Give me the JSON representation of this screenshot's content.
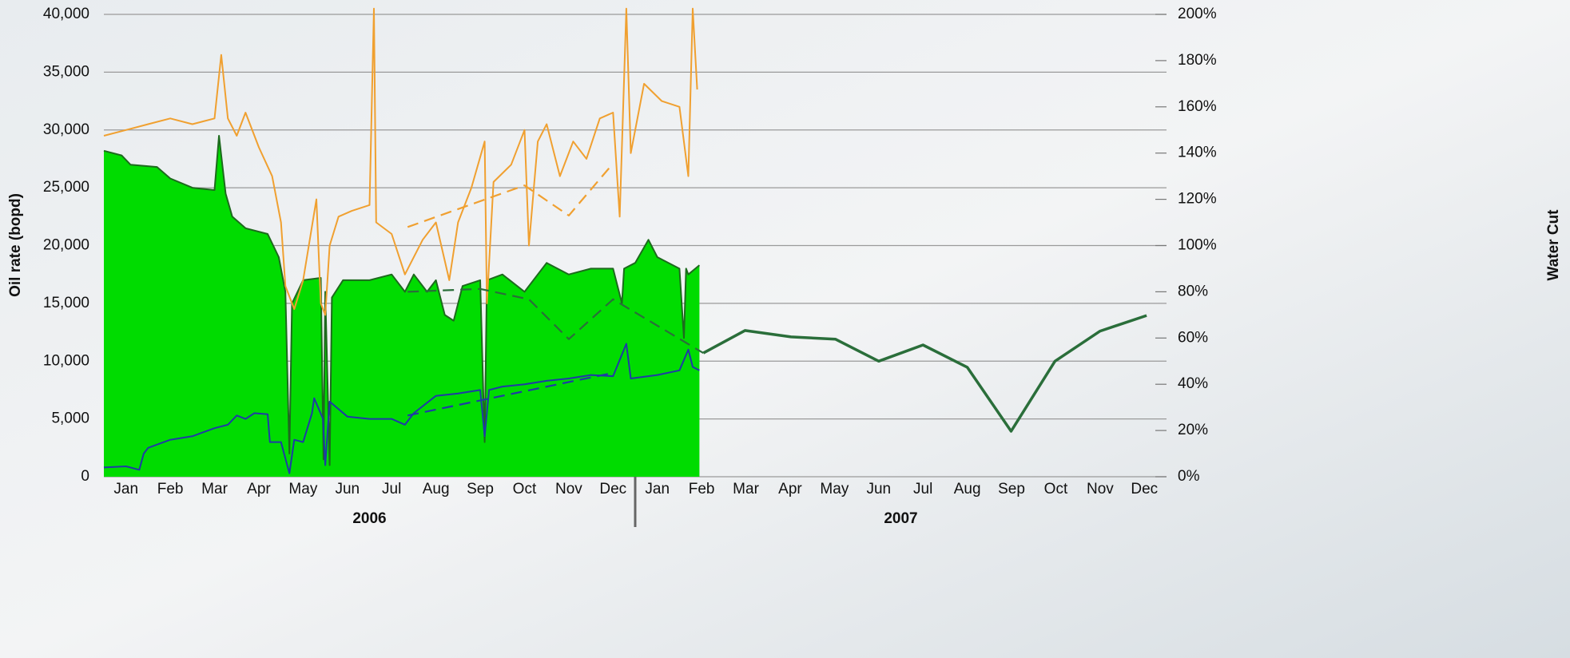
{
  "chart_data": {
    "type": "line",
    "y_axis_label": "Oil rate (bopd)",
    "y2_axis_label": "Water Cut",
    "xlim": [
      0,
      24
    ],
    "xticks": [
      {
        "value": 0.5,
        "label": "Jan"
      },
      {
        "value": 1.5,
        "label": "Feb"
      },
      {
        "value": 2.5,
        "label": "Mar"
      },
      {
        "value": 3.5,
        "label": "Apr"
      },
      {
        "value": 4.5,
        "label": "May"
      },
      {
        "value": 5.5,
        "label": "Jun"
      },
      {
        "value": 6.5,
        "label": "Jul"
      },
      {
        "value": 7.5,
        "label": "Aug"
      },
      {
        "value": 8.5,
        "label": "Sep"
      },
      {
        "value": 9.5,
        "label": "Oct"
      },
      {
        "value": 10.5,
        "label": "Nov"
      },
      {
        "value": 11.5,
        "label": "Dec"
      },
      {
        "value": 12.5,
        "label": "Jan"
      },
      {
        "value": 13.5,
        "label": "Feb"
      },
      {
        "value": 14.5,
        "label": "Mar"
      },
      {
        "value": 15.5,
        "label": "Apr"
      },
      {
        "value": 16.5,
        "label": "May"
      },
      {
        "value": 17.5,
        "label": "Jun"
      },
      {
        "value": 18.5,
        "label": "Jul"
      },
      {
        "value": 19.5,
        "label": "Aug"
      },
      {
        "value": 20.5,
        "label": "Sep"
      },
      {
        "value": 21.5,
        "label": "Oct"
      },
      {
        "value": 22.5,
        "label": "Nov"
      },
      {
        "value": 23.5,
        "label": "Dec"
      }
    ],
    "x_groups": [
      {
        "label": "2006",
        "range": [
          0,
          12
        ]
      },
      {
        "label": "2007",
        "range": [
          12,
          24
        ]
      }
    ],
    "ylim": [
      0,
      40000
    ],
    "yticks": [
      0,
      {
        "value": 5000,
        "label": "5,000"
      },
      {
        "value": 10000,
        "label": "10,000"
      },
      {
        "value": 15000,
        "label": "15,000"
      },
      {
        "value": 20000,
        "label": "20,000"
      },
      {
        "value": 25000,
        "label": "25,000"
      },
      {
        "value": 30000,
        "label": "30,000"
      },
      {
        "value": 35000,
        "label": "35,000"
      },
      {
        "value": 40000,
        "label": "40,000"
      }
    ],
    "y2lim": [
      0,
      200
    ],
    "y2ticks": [
      {
        "value": 0,
        "label": "0%"
      },
      {
        "value": 20,
        "label": "20%"
      },
      {
        "value": 40,
        "label": "40%"
      },
      {
        "value": 60,
        "label": "60%"
      },
      {
        "value": 80,
        "label": "80%"
      },
      {
        "value": 100,
        "label": "100%"
      },
      {
        "value": 120,
        "label": "120%"
      },
      {
        "value": 140,
        "label": "140%"
      },
      {
        "value": 160,
        "label": "160%"
      },
      {
        "value": 180,
        "label": "180%"
      },
      {
        "value": 200,
        "label": "200%"
      }
    ],
    "grid": true,
    "series": [
      {
        "color": "#1d6a1d",
        "fill": "#00dc00",
        "style": "solid",
        "x": [
          0,
          0.4,
          0.6,
          1.2,
          1.5,
          2.0,
          2.5,
          2.6,
          2.75,
          2.9,
          3.2,
          3.7,
          3.95,
          4.1,
          4.19,
          4.25,
          4.5,
          4.9,
          4.96,
          5.0,
          5.1,
          5.15,
          5.4,
          6.0,
          6.5,
          6.8,
          7.0,
          7.3,
          7.5,
          7.7,
          7.9,
          8.1,
          8.5,
          8.6,
          8.65,
          9.0,
          9.5,
          10.0,
          10.5,
          11.0,
          11.5,
          11.7,
          11.75,
          12.0,
          12.3,
          12.5,
          13.0,
          13.1,
          13.15,
          13.2,
          13.45
        ],
        "values": [
          28200,
          27800,
          27000,
          26800,
          25800,
          25000,
          24800,
          29500,
          24500,
          22500,
          21500,
          21000,
          19000,
          16000,
          2000,
          15000,
          17000,
          17200,
          1500,
          16000,
          1000,
          15500,
          17000,
          17000,
          17500,
          16000,
          17500,
          16000,
          17000,
          14000,
          13500,
          16500,
          17000,
          3000,
          17000,
          17500,
          16000,
          18500,
          17500,
          18000,
          18000,
          15000,
          18000,
          18500,
          20500,
          19000,
          18000,
          12000,
          18000,
          17500,
          18300
        ]
      },
      {
        "color": "#f0a030",
        "style": "solid",
        "x": [
          0,
          0.5,
          1.0,
          1.5,
          2.0,
          2.5,
          2.65,
          2.8,
          3.0,
          3.2,
          3.5,
          3.8,
          4.0,
          4.1,
          4.3,
          4.5,
          4.8,
          4.9,
          5.0,
          5.1,
          5.3,
          5.6,
          6.0,
          6.1,
          6.15,
          6.5,
          6.8,
          7.2,
          7.5,
          7.8,
          8.0,
          8.3,
          8.6,
          8.65,
          8.8,
          9.2,
          9.5,
          9.6,
          9.8,
          10.0,
          10.3,
          10.6,
          10.9,
          11.2,
          11.5,
          11.65,
          11.8,
          11.9,
          12.2,
          12.6,
          13.0,
          13.2,
          13.3,
          13.4
        ],
        "values": [
          29500,
          30000,
          30500,
          31000,
          30500,
          31000,
          36500,
          31000,
          29500,
          31500,
          28500,
          26000,
          22000,
          16500,
          14500,
          17000,
          24000,
          15000,
          14000,
          20000,
          22500,
          23000,
          23500,
          40500,
          22000,
          21000,
          17500,
          20500,
          22000,
          17000,
          22000,
          25000,
          29000,
          15000,
          25500,
          27000,
          30000,
          20000,
          29000,
          30500,
          26000,
          29000,
          27500,
          31000,
          31500,
          22500,
          40500,
          28000,
          34000,
          32500,
          32000,
          26000,
          40500,
          33500
        ]
      },
      {
        "color": "#1f3aa6",
        "style": "solid",
        "x": [
          0,
          0.5,
          0.8,
          0.9,
          1.0,
          1.5,
          2.0,
          2.5,
          2.8,
          3.0,
          3.2,
          3.4,
          3.7,
          3.75,
          4.0,
          4.19,
          4.3,
          4.5,
          4.7,
          4.75,
          4.95,
          5.0,
          5.1,
          5.5,
          6.0,
          6.5,
          6.8,
          7.0,
          7.5,
          8.0,
          8.5,
          8.6,
          8.7,
          9.0,
          9.5,
          10.0,
          10.5,
          11.0,
          11.5,
          11.8,
          11.9,
          12.5,
          13.0,
          13.2,
          13.3,
          13.45
        ],
        "values": [
          800,
          900,
          600,
          2000,
          2500,
          3200,
          3500,
          4200,
          4500,
          5300,
          5000,
          5500,
          5400,
          3000,
          3000,
          300,
          3200,
          3000,
          5500,
          6800,
          5000,
          1000,
          6500,
          5200,
          5000,
          5000,
          4500,
          5500,
          7000,
          7200,
          7500,
          3500,
          7500,
          7800,
          8000,
          8300,
          8500,
          8800,
          8700,
          11500,
          8500,
          8800,
          9200,
          11000,
          9500,
          9200
        ]
      },
      {
        "color": "#f0a030",
        "style": "dashed",
        "x": [
          6.86,
          9.5,
          10.5,
          11.5
        ],
        "values": [
          21600,
          25200,
          22600,
          27100
        ]
      },
      {
        "color": "#2a6e3a",
        "style": "dashed",
        "x": [
          6.86,
          8.5,
          9.6,
          10.5,
          11.5,
          12.4,
          13.54
        ],
        "values": [
          16000,
          16250,
          15350,
          11900,
          15350,
          13300,
          10700
        ]
      },
      {
        "color": "#1f3aa6",
        "style": "dashed",
        "x": [
          6.86,
          11.52
        ],
        "values": [
          5300,
          9000
        ]
      },
      {
        "color": "#2a6e3a",
        "style": "solid",
        "x": [
          13.54,
          14.48,
          15.52,
          16.52,
          17.5,
          18.5,
          19.5,
          20.49,
          21.48,
          22.5,
          23.55
        ],
        "values": [
          10700,
          12650,
          12100,
          11900,
          10000,
          11400,
          9470,
          3940,
          10000,
          12600,
          13950
        ]
      }
    ]
  }
}
